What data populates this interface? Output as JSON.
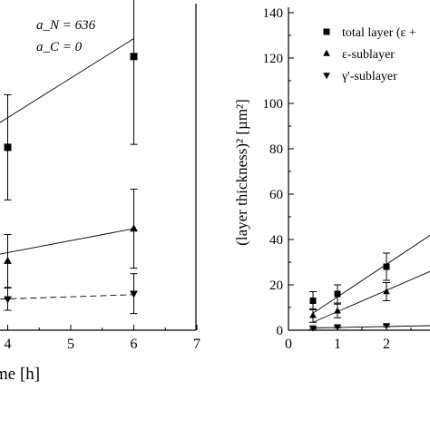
{
  "chart_data": [
    {
      "type": "scatter",
      "panel": "left",
      "xlabel": "me [h]",
      "ylabel": "",
      "xlim": [
        3.25,
        7
      ],
      "x_ticks": [
        4,
        5,
        6,
        7
      ],
      "annotations": [
        "a_N = 636",
        "a_C = 0"
      ],
      "series": [
        {
          "marker": "square",
          "line": "solid",
          "points": [
            {
              "x": 4,
              "y": 0.56,
              "err": 0.161
            },
            {
              "x": 6,
              "y": 0.838,
              "err": 0.269
            }
          ],
          "fit": [
            [
              3.25,
              0.56
            ],
            [
              6.0,
              0.893
            ]
          ]
        },
        {
          "marker": "triangle-up",
          "line": "solid",
          "points": [
            {
              "x": 4,
              "y": 0.212,
              "err": 0.081
            },
            {
              "x": 6,
              "y": 0.311,
              "err": 0.121
            }
          ],
          "fit": [
            [
              3.25,
              0.21
            ],
            [
              6.0,
              0.311
            ]
          ]
        },
        {
          "marker": "triangle-down",
          "line": "dashed",
          "points": [
            {
              "x": 4,
              "y": 0.095,
              "err": 0.034
            },
            {
              "x": 6,
              "y": 0.112,
              "err": 0.061
            }
          ],
          "fit": [
            [
              3.25,
              0.091
            ],
            [
              6.0,
              0.109
            ]
          ]
        }
      ]
    },
    {
      "type": "scatter",
      "panel": "right",
      "ylabel": "(layer thickness)² [µm²]",
      "xlim": [
        0,
        2.9
      ],
      "ylim": [
        0,
        140
      ],
      "x_ticks": [
        0,
        1,
        2
      ],
      "y_ticks": [
        0,
        20,
        40,
        60,
        80,
        100,
        120,
        140
      ],
      "legend": [
        {
          "marker": "square",
          "label": "total layer (ε +"
        },
        {
          "marker": "triangle-up",
          "label": "ε-sublayer"
        },
        {
          "marker": "triangle-down",
          "label": "γ'-sublayer"
        }
      ],
      "series": [
        {
          "marker": "square",
          "points": [
            {
              "x": 0.5,
              "y": 13,
              "err": 4
            },
            {
              "x": 1,
              "y": 16,
              "err": 4
            },
            {
              "x": 2,
              "y": 28,
              "err": 6
            }
          ],
          "fit": [
            [
              0.5,
              7.5
            ],
            [
              2.9,
              42
            ]
          ]
        },
        {
          "marker": "triangle-up",
          "points": [
            {
              "x": 0.5,
              "y": 6.5,
              "err": 3
            },
            {
              "x": 1,
              "y": 8.5,
              "err": 3
            },
            {
              "x": 2,
              "y": 17,
              "err": 4
            }
          ],
          "fit": [
            [
              0.5,
              3.5
            ],
            [
              2.9,
              26
            ]
          ]
        },
        {
          "marker": "triangle-down",
          "points": [
            {
              "x": 0.5,
              "y": 1,
              "err": 0.5
            },
            {
              "x": 1,
              "y": 1.5,
              "err": 0.5
            },
            {
              "x": 2,
              "y": 2,
              "err": 0.5
            }
          ],
          "fit": [
            [
              0.5,
              1
            ],
            [
              2.9,
              2
            ]
          ]
        }
      ]
    }
  ]
}
